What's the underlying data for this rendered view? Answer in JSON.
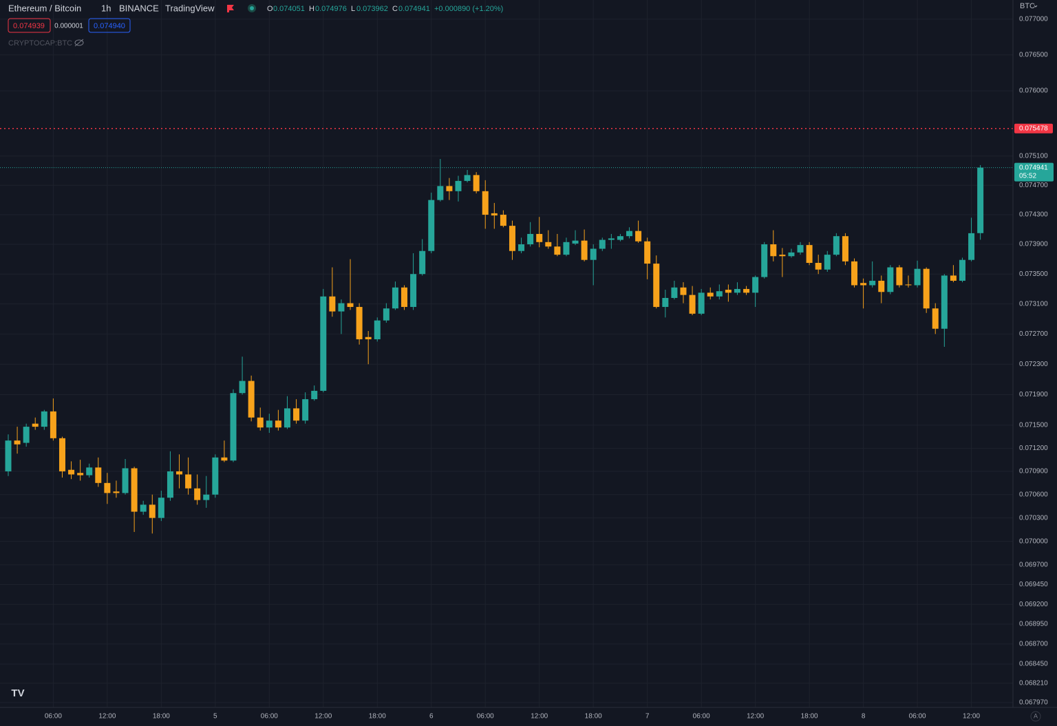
{
  "header": {
    "symbol": "Ethereum / Bitcoin",
    "interval": "1h",
    "exchange": "BINANCE",
    "source": "TradingView",
    "o_label": "O",
    "h_label": "H",
    "l_label": "L",
    "c_label": "C",
    "change": "+0.000890 (+1.20%)",
    "bid": "0.074939",
    "spread": "0.000001",
    "ask": "0.074940",
    "indicator": "CRYPTOCAP:BTC",
    "currency": "BTC",
    "countdown": "05:52",
    "auto": "A"
  },
  "chart_data": {
    "type": "candlestick",
    "log_scale": true,
    "grid": true,
    "up_color": "#26a69a",
    "down_color": "#f7a21b",
    "price_line_color": "#f23645",
    "price_lines": [
      0.075478
    ],
    "ylim": [
      0.06791,
      0.07727
    ],
    "yticks": [
      {
        "value": 0.077,
        "label": "0.077000"
      },
      {
        "value": 0.0765,
        "label": "0.076500"
      },
      {
        "value": 0.076,
        "label": "0.076000"
      },
      {
        "value": 0.0751,
        "label": "0.075100"
      },
      {
        "value": 0.0747,
        "label": "0.074700"
      },
      {
        "value": 0.0743,
        "label": "0.074300"
      },
      {
        "value": 0.0739,
        "label": "0.073900"
      },
      {
        "value": 0.0735,
        "label": "0.073500"
      },
      {
        "value": 0.0731,
        "label": "0.073100"
      },
      {
        "value": 0.0727,
        "label": "0.072700"
      },
      {
        "value": 0.0723,
        "label": "0.072300"
      },
      {
        "value": 0.0719,
        "label": "0.071900"
      },
      {
        "value": 0.0715,
        "label": "0.071500"
      },
      {
        "value": 0.0712,
        "label": "0.071200"
      },
      {
        "value": 0.0709,
        "label": "0.070900"
      },
      {
        "value": 0.0706,
        "label": "0.070600"
      },
      {
        "value": 0.0703,
        "label": "0.070300"
      },
      {
        "value": 0.07,
        "label": "0.070000"
      },
      {
        "value": 0.0697,
        "label": "0.069700"
      },
      {
        "value": 0.06945,
        "label": "0.069450"
      },
      {
        "value": 0.0692,
        "label": "0.069200"
      },
      {
        "value": 0.06895,
        "label": "0.068950"
      },
      {
        "value": 0.0687,
        "label": "0.068700"
      },
      {
        "value": 0.06845,
        "label": "0.068450"
      },
      {
        "value": 0.06821,
        "label": "0.068210"
      },
      {
        "value": 0.06797,
        "label": "0.067970"
      }
    ],
    "categories": [
      null,
      null,
      null,
      null,
      null,
      "06:00",
      null,
      null,
      null,
      null,
      null,
      "12:00",
      null,
      null,
      null,
      null,
      null,
      "18:00",
      null,
      null,
      null,
      null,
      null,
      "5",
      null,
      null,
      null,
      null,
      null,
      "06:00",
      null,
      null,
      null,
      null,
      null,
      "12:00",
      null,
      null,
      null,
      null,
      null,
      "18:00",
      null,
      null,
      null,
      null,
      null,
      "6",
      null,
      null,
      null,
      null,
      null,
      "06:00",
      null,
      null,
      null,
      null,
      null,
      "12:00",
      null,
      null,
      null,
      null,
      null,
      "18:00",
      null,
      null,
      null,
      null,
      null,
      "7",
      null,
      null,
      null,
      null,
      null,
      "06:00",
      null,
      null,
      null,
      null,
      null,
      "12:00",
      null,
      null,
      null,
      null,
      null,
      "18:00",
      null,
      null,
      null,
      null,
      null,
      "8",
      null,
      null,
      null,
      null,
      null,
      "06:00",
      null,
      null,
      null,
      null,
      null,
      "12:00",
      null
    ],
    "open": [
      0.0709,
      0.0713,
      0.07127,
      0.07152,
      0.07148,
      0.07168,
      0.07133,
      0.07092,
      0.07088,
      0.07085,
      0.07095,
      0.07075,
      0.07064,
      0.07062,
      0.07094,
      0.07038,
      0.07047,
      0.0703,
      0.07056,
      0.0709,
      0.07086,
      0.07068,
      0.07053,
      0.0706,
      0.07108,
      0.07104,
      0.07192,
      0.07208,
      0.0716,
      0.07147,
      0.07156,
      0.07147,
      0.07172,
      0.07156,
      0.07184,
      0.07195,
      0.0732,
      0.073,
      0.07311,
      0.07306,
      0.07266,
      0.07263,
      0.07288,
      0.07304,
      0.07332,
      0.07306,
      0.0735,
      0.07381,
      0.0745,
      0.07469,
      0.07462,
      0.07476,
      0.07484,
      0.07462,
      0.07432,
      0.0743,
      0.07415,
      0.07381,
      0.0739,
      0.07404,
      0.07393,
      0.07387,
      0.07376,
      0.07391,
      0.07395,
      0.07369,
      0.07384,
      0.07396,
      0.07396,
      0.07401,
      0.07408,
      0.07394,
      0.07364,
      0.07306,
      0.07318,
      0.07332,
      0.07322,
      0.07297,
      0.07325,
      0.0732,
      0.07329,
      0.07325,
      0.0733,
      0.07325,
      0.07346,
      0.0739,
      0.07376,
      0.07374,
      0.07379,
      0.07389,
      0.07365,
      0.07356,
      0.07376,
      0.07401,
      0.07367,
      0.07338,
      0.07335,
      0.07341,
      0.07326,
      0.07359,
      0.07336,
      0.07335,
      0.07357,
      0.07304,
      0.07277,
      0.07348,
      0.07341,
      0.07369,
      0.074051
    ],
    "high": [
      0.07138,
      0.07148,
      0.07152,
      0.0716,
      0.0717,
      0.07185,
      0.07135,
      0.07103,
      0.07105,
      0.071,
      0.07108,
      0.07088,
      0.07078,
      0.07106,
      0.07096,
      0.07052,
      0.0706,
      0.07065,
      0.07116,
      0.07112,
      0.07108,
      0.07086,
      0.07084,
      0.07112,
      0.0713,
      0.07197,
      0.0724,
      0.07215,
      0.07173,
      0.07165,
      0.0717,
      0.07188,
      0.07184,
      0.07193,
      0.07202,
      0.0733,
      0.07359,
      0.07316,
      0.0737,
      0.07311,
      0.07274,
      0.07292,
      0.07311,
      0.0734,
      0.07335,
      0.07378,
      0.07397,
      0.0746,
      0.07506,
      0.0748,
      0.07483,
      0.07491,
      0.07488,
      0.07477,
      0.07446,
      0.07436,
      0.07422,
      0.07399,
      0.0742,
      0.07427,
      0.07409,
      0.07404,
      0.07399,
      0.07409,
      0.0741,
      0.0739,
      0.07399,
      0.07404,
      0.07404,
      0.07413,
      0.07422,
      0.07399,
      0.07375,
      0.07329,
      0.07341,
      0.07339,
      0.07334,
      0.0733,
      0.07332,
      0.07336,
      0.07336,
      0.07339,
      0.07334,
      0.07348,
      0.07393,
      0.07409,
      0.07385,
      0.07384,
      0.07393,
      0.07393,
      0.07376,
      0.07381,
      0.07405,
      0.07405,
      0.07371,
      0.07344,
      0.07367,
      0.07348,
      0.07362,
      0.07362,
      0.07348,
      0.07368,
      0.07359,
      0.07311,
      0.0735,
      0.07362,
      0.07372,
      0.07426,
      0.074976
    ],
    "low": [
      0.07084,
      0.07113,
      0.07122,
      0.07144,
      0.07144,
      0.0713,
      0.07082,
      0.0708,
      0.07078,
      0.07082,
      0.0707,
      0.07048,
      0.07056,
      0.0706,
      0.07012,
      0.07034,
      0.0701,
      0.07026,
      0.07052,
      0.07068,
      0.0706,
      0.07047,
      0.07043,
      0.07056,
      0.07102,
      0.07102,
      0.0719,
      0.07155,
      0.07143,
      0.0714,
      0.07143,
      0.07145,
      0.07152,
      0.07152,
      0.07182,
      0.07193,
      0.07293,
      0.0727,
      0.07302,
      0.07256,
      0.0723,
      0.0726,
      0.07285,
      0.07302,
      0.07302,
      0.07302,
      0.07348,
      0.07378,
      0.07448,
      0.0745,
      0.07448,
      0.07474,
      0.07459,
      0.07411,
      0.07411,
      0.07413,
      0.07369,
      0.07378,
      0.07387,
      0.07386,
      0.07384,
      0.07374,
      0.07374,
      0.07389,
      0.07367,
      0.07335,
      0.07381,
      0.07384,
      0.07394,
      0.07398,
      0.07392,
      0.07343,
      0.07304,
      0.07292,
      0.07316,
      0.07311,
      0.07295,
      0.07295,
      0.07316,
      0.07316,
      0.07313,
      0.07322,
      0.07322,
      0.07306,
      0.07344,
      0.07367,
      0.07346,
      0.07372,
      0.07376,
      0.07362,
      0.0735,
      0.07353,
      0.07374,
      0.07362,
      0.07332,
      0.07304,
      0.07332,
      0.07311,
      0.07323,
      0.07332,
      0.07332,
      0.07332,
      0.07298,
      0.0727,
      0.07253,
      0.07339,
      0.07339,
      0.07367,
      0.073962
    ],
    "close": [
      0.0713,
      0.07125,
      0.07148,
      0.07148,
      0.07168,
      0.07133,
      0.0709,
      0.07086,
      0.07085,
      0.07095,
      0.07075,
      0.07062,
      0.07062,
      0.07094,
      0.07038,
      0.07047,
      0.0703,
      0.07056,
      0.0709,
      0.07086,
      0.07068,
      0.07053,
      0.0706,
      0.07108,
      0.07104,
      0.07192,
      0.07208,
      0.0716,
      0.07147,
      0.07156,
      0.07147,
      0.07172,
      0.07156,
      0.07184,
      0.07195,
      0.0732,
      0.073,
      0.07311,
      0.07306,
      0.07263,
      0.07263,
      0.07288,
      0.07304,
      0.07332,
      0.07306,
      0.0735,
      0.07381,
      0.0745,
      0.07469,
      0.07462,
      0.07476,
      0.07484,
      0.07462,
      0.0743,
      0.07429,
      0.07415,
      0.07381,
      0.0739,
      0.07404,
      0.07393,
      0.07387,
      0.07376,
      0.07393,
      0.07395,
      0.07369,
      0.07384,
      0.07396,
      0.07398,
      0.07401,
      0.07408,
      0.07394,
      0.07364,
      0.07306,
      0.07318,
      0.07332,
      0.07322,
      0.07297,
      0.07325,
      0.0732,
      0.07327,
      0.07325,
      0.0733,
      0.07325,
      0.07346,
      0.0739,
      0.07374,
      0.07374,
      0.07379,
      0.07389,
      0.07365,
      0.07356,
      0.07376,
      0.07401,
      0.07367,
      0.07335,
      0.07335,
      0.07341,
      0.07326,
      0.07359,
      0.07335,
      0.07335,
      0.07357,
      0.07304,
      0.07277,
      0.07348,
      0.07341,
      0.07369,
      0.07405,
      0.074941
    ]
  }
}
